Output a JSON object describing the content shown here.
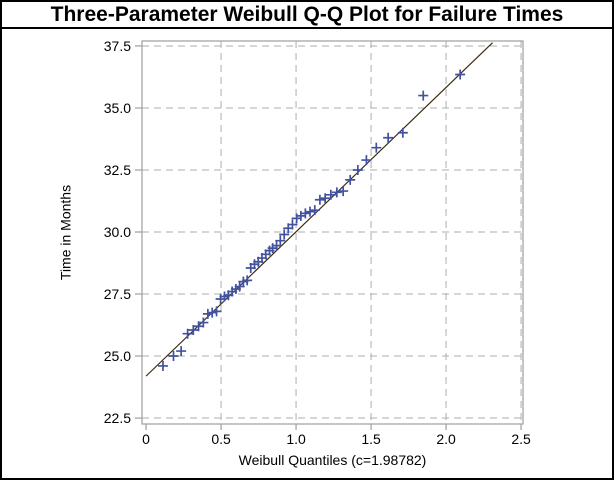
{
  "chart": {
    "title": "Three-Parameter Weibull Q-Q Plot for Failure Times"
  },
  "chart_data": {
    "type": "scatter",
    "title": "Three-Parameter Weibull Q-Q Plot for Failure Times",
    "xlabel": "Weibull Quantiles (c=1.98782)",
    "ylabel": "Time in Months",
    "weibull_shape_c": "1.98782",
    "xlim": [
      -0.027,
      2.513
    ],
    "ylim": [
      22.26,
      37.7
    ],
    "x_ticks": [
      0,
      0.5,
      1.0,
      1.5,
      2.0,
      2.5
    ],
    "x_tick_labels": [
      "0",
      "0.5",
      "1.0",
      "1.5",
      "2.0",
      "2.5"
    ],
    "y_ticks": [
      22.5,
      25.0,
      27.5,
      30.0,
      32.5,
      35.0,
      37.5
    ],
    "y_tick_labels": [
      "22.5",
      "25.0",
      "27.5",
      "30.0",
      "32.5",
      "35.0",
      "37.5"
    ],
    "x_grid_ticks": [
      0.5,
      1.0,
      1.5,
      2.0,
      2.5
    ],
    "y_grid_ticks": [
      22.5,
      25.0,
      27.5,
      30.0,
      32.5,
      35.0,
      37.5
    ],
    "grid": "dashed",
    "legend": "none",
    "marker": "plus",
    "points": [
      [
        0.113,
        24.6
      ],
      [
        0.183,
        25.0
      ],
      [
        0.234,
        25.2
      ],
      [
        0.277,
        25.9
      ],
      [
        0.315,
        26.05
      ],
      [
        0.35,
        26.2
      ],
      [
        0.382,
        26.35
      ],
      [
        0.412,
        26.7
      ],
      [
        0.441,
        26.75
      ],
      [
        0.47,
        26.8
      ],
      [
        0.497,
        27.3
      ],
      [
        0.523,
        27.4
      ],
      [
        0.549,
        27.45
      ],
      [
        0.574,
        27.6
      ],
      [
        0.599,
        27.7
      ],
      [
        0.624,
        27.8
      ],
      [
        0.649,
        28.0
      ],
      [
        0.674,
        28.05
      ],
      [
        0.698,
        28.55
      ],
      [
        0.723,
        28.7
      ],
      [
        0.748,
        28.8
      ],
      [
        0.773,
        28.95
      ],
      [
        0.798,
        29.1
      ],
      [
        0.823,
        29.25
      ],
      [
        0.844,
        29.35
      ],
      [
        0.87,
        29.45
      ],
      [
        0.895,
        29.65
      ],
      [
        0.921,
        29.9
      ],
      [
        0.948,
        30.15
      ],
      [
        0.976,
        30.3
      ],
      [
        1.004,
        30.55
      ],
      [
        1.032,
        30.65
      ],
      [
        1.062,
        30.75
      ],
      [
        1.093,
        30.82
      ],
      [
        1.125,
        30.88
      ],
      [
        1.159,
        31.3
      ],
      [
        1.194,
        31.36
      ],
      [
        1.232,
        31.5
      ],
      [
        1.272,
        31.6
      ],
      [
        1.314,
        31.65
      ],
      [
        1.361,
        32.1
      ],
      [
        1.412,
        32.5
      ],
      [
        1.469,
        32.9
      ],
      [
        1.535,
        33.4
      ],
      [
        1.614,
        33.8
      ],
      [
        1.712,
        34.0
      ],
      [
        1.848,
        35.5
      ],
      [
        2.094,
        36.35
      ]
    ],
    "fit_line": {
      "x1": 0.0,
      "y1": 24.19,
      "x2": 2.31,
      "y2": 37.63
    }
  },
  "style": {
    "background": "#ffffff",
    "border_color": "#000000",
    "text_color": "#000000",
    "frame_color": "#9e9e9e",
    "grid_color": "#aeaeae",
    "tick_color": "#9e9e9e",
    "marker_color": "#42529e",
    "fit_line_color": "#3d2a12"
  }
}
